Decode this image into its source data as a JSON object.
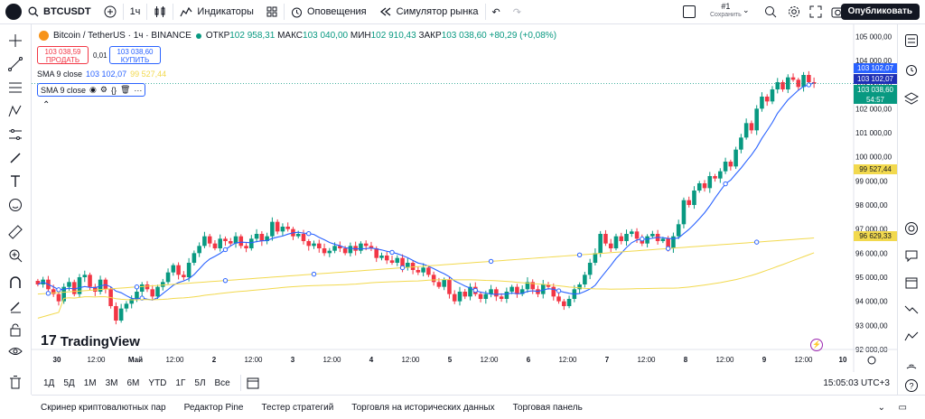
{
  "topbar": {
    "symbol": "BTCUSDT",
    "interval": "1ч",
    "indicators": "Индикаторы",
    "alerts": "Оповещения",
    "replay": "Симулятор рынка",
    "layout_name": "#1",
    "layout_sub": "Сохранить",
    "publish": "Опубликовать"
  },
  "legend": {
    "title": "Bitcoin / TetherUS · 1ч · BINANCE",
    "o_label": "ОТКР",
    "o": "102 958,31",
    "h_label": "МАКС",
    "h": "103 040,00",
    "l_label": "МИН",
    "l": "102 910,43",
    "c_label": "ЗАКР",
    "c": "103 038,60",
    "change": "+80,29 (+0,08%)"
  },
  "trade": {
    "sell_price": "103 038,59",
    "sell_label": "ПРОДАТЬ",
    "spread": "0,01",
    "buy_price": "103 038,60",
    "buy_label": "КУПИТЬ"
  },
  "sma1": {
    "label": "SMA 9 close",
    "v1": "103 102,07",
    "v2": "99 527,44"
  },
  "sma2": {
    "label": "SMA 9 close"
  },
  "price_axis": [
    "105 000,00",
    "104 000,00",
    "103 000,00",
    "102 000,00",
    "101 000,00",
    "100 000,00",
    "99 000,00",
    "98 000,00",
    "97 000,00",
    "96 000,00",
    "95 000,00",
    "94 000,00",
    "93 000,00",
    "92 000,00"
  ],
  "price_labels": {
    "p1": "103 102,07",
    "p2": "103 102,07",
    "p3": "103 038,60",
    "countdown": "54:57",
    "p4": "99 527,44",
    "p5": "96 629,33"
  },
  "time_axis": [
    "30",
    "12:00",
    "Май",
    "12:00",
    "2",
    "12:00",
    "3",
    "12:00",
    "4",
    "12:00",
    "5",
    "12:00",
    "6",
    "12:00",
    "7",
    "12:00",
    "8",
    "12:00",
    "9",
    "12:00",
    "10"
  ],
  "timeframes": [
    "1Д",
    "5Д",
    "1М",
    "3М",
    "6М",
    "YTD",
    "1Г",
    "5Л",
    "Все"
  ],
  "clock": "15:05:03 UTC+3",
  "logo_text": "TradingView",
  "panel": [
    "Скринер криптовалютных пар",
    "Редактор Pine",
    "Тестер стратегий",
    "Торговля на исторических данных",
    "Торговая панель"
  ],
  "colors": {
    "up": "#089981",
    "down": "#f23645",
    "sma_fast": "#2962ff",
    "sma_slow": "#f2d94e",
    "dark": "#131722"
  },
  "chart_data": {
    "type": "candlestick",
    "interval": "1h",
    "ylim": [
      92000,
      105500
    ],
    "close": [
      94700,
      94900,
      94500,
      94300,
      94000,
      94600,
      94800,
      94300,
      95000,
      95100,
      94600,
      94400,
      94900,
      94500,
      93800,
      93200,
      93700,
      93900,
      94100,
      94400,
      94700,
      94500,
      94200,
      94600,
      94800,
      95200,
      95500,
      95100,
      95000,
      95600,
      96000,
      96300,
      96700,
      96400,
      96200,
      96600,
      96500,
      96400,
      96700,
      96300,
      96200,
      96600,
      96800,
      96500,
      96700,
      97300,
      96900,
      97100,
      97000,
      96700,
      96800,
      96500,
      96300,
      96400,
      96200,
      96000,
      96100,
      96300,
      96200,
      96000,
      96300,
      96100,
      96400,
      96300,
      96200,
      95800,
      95900,
      95700,
      95600,
      95800,
      95400,
      95600,
      95300,
      95200,
      95400,
      95100,
      94800,
      94600,
      94900,
      94300,
      94000,
      94400,
      94200,
      94600,
      94300,
      94100,
      94300,
      94500,
      94200,
      94100,
      94400,
      94600,
      94300,
      94500,
      94800,
      94500,
      94300,
      94700,
      94600,
      94200,
      94000,
      93800,
      94100,
      94500,
      94700,
      95100,
      95600,
      96000,
      96800,
      96400,
      96200,
      96700,
      96500,
      96800,
      96900,
      96600,
      96400,
      96700,
      96800,
      96500,
      96600,
      96200,
      96700,
      97200,
      98200,
      98000,
      98600,
      98900,
      98700,
      99200,
      99100,
      99400,
      99800,
      99600,
      100300,
      100800,
      101400,
      101100,
      102000,
      102500,
      102300,
      102800,
      103100,
      102800,
      103300,
      103200,
      102900,
      103400,
      103100,
      103038.6
    ],
    "sma_fast_last": 103102.07,
    "sma_slow_last": 99527.44,
    "sma_slow2_last": 96629.33
  }
}
